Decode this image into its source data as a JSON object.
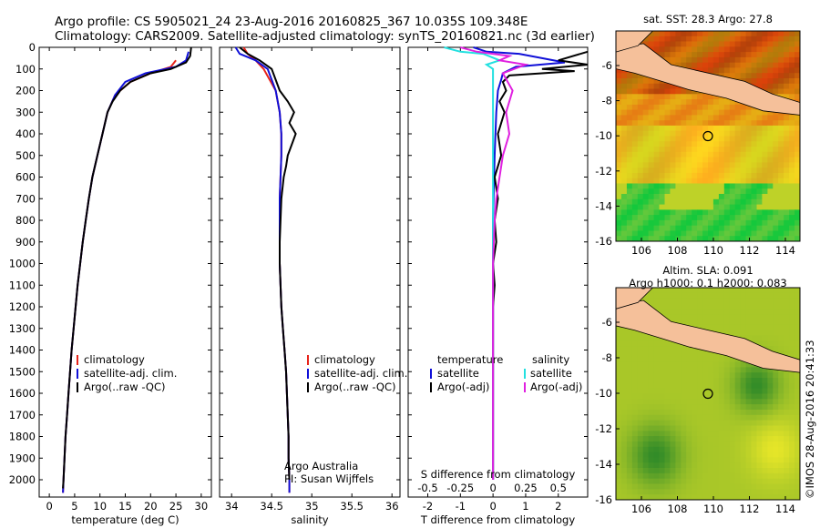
{
  "header": {
    "line1": "Argo profile: CS 5905021_24 23-Aug-2016 20160825_367 10.035S 109.348E",
    "line2": "Climatology: CARS2009. Satellite-adjusted climatology: synTS_20160821.nc (3d earlier)"
  },
  "depth_ticks": [
    0,
    100,
    200,
    300,
    400,
    500,
    600,
    700,
    800,
    900,
    1000,
    1100,
    1200,
    1300,
    1400,
    1500,
    1600,
    1700,
    1800,
    1900,
    2000
  ],
  "colors": {
    "climatology": "#e8241b",
    "satellite": "#1010d8",
    "argo": "#000000",
    "sal_sat": "#22e0e0",
    "sal_argo": "#e020e0"
  },
  "chart_data": [
    {
      "type": "line",
      "xlabel": "temperature (deg C)",
      "ylabel": "",
      "xticks": [
        0,
        5,
        10,
        15,
        20,
        25,
        30
      ],
      "xlim": [
        -2,
        32
      ],
      "ylim": [
        2080,
        0
      ],
      "legend": [
        "climatology",
        "satellite-adj. clim.",
        "Argo(..raw -QC)"
      ],
      "series": [
        {
          "name": "climatology",
          "points": [
            [
              25,
              60
            ],
            [
              24,
              90
            ],
            [
              20,
              120
            ],
            [
              16,
              160
            ],
            [
              13,
              220
            ],
            [
              11.5,
              300
            ],
            [
              10.5,
              400
            ],
            [
              9.5,
              500
            ],
            [
              8.5,
              600
            ],
            [
              7.8,
              700
            ],
            [
              7.2,
              800
            ],
            [
              6.6,
              900
            ],
            [
              6.1,
              1000
            ],
            [
              5.6,
              1100
            ],
            [
              5.2,
              1200
            ],
            [
              4.8,
              1300
            ],
            [
              4.4,
              1400
            ],
            [
              4.1,
              1500
            ],
            [
              3.8,
              1600
            ],
            [
              3.5,
              1700
            ],
            [
              3.2,
              1800
            ],
            [
              3.0,
              1900
            ],
            [
              2.8,
              2000
            ],
            [
              2.7,
              2060
            ]
          ]
        },
        {
          "name": "satellite-adj. clim.",
          "points": [
            [
              27.5,
              20
            ],
            [
              27,
              60
            ],
            [
              25,
              90
            ],
            [
              19,
              120
            ],
            [
              15,
              160
            ],
            [
              13,
              220
            ],
            [
              11.5,
              300
            ],
            [
              10.5,
              400
            ],
            [
              9.5,
              500
            ],
            [
              8.5,
              600
            ],
            [
              7.8,
              700
            ],
            [
              7.2,
              800
            ],
            [
              6.6,
              900
            ],
            [
              6.1,
              1000
            ],
            [
              5.6,
              1100
            ],
            [
              5.2,
              1200
            ],
            [
              4.8,
              1300
            ],
            [
              4.4,
              1400
            ],
            [
              4.1,
              1500
            ],
            [
              3.8,
              1600
            ],
            [
              3.5,
              1700
            ],
            [
              3.2,
              1800
            ],
            [
              3.0,
              1900
            ],
            [
              2.8,
              2000
            ],
            [
              2.7,
              2060
            ]
          ]
        },
        {
          "name": "Argo(..raw -QC)",
          "points": [
            [
              28,
              0
            ],
            [
              27.8,
              40
            ],
            [
              27,
              70
            ],
            [
              24,
              100
            ],
            [
              20,
              120
            ],
            [
              16,
              160
            ],
            [
              14,
              200
            ],
            [
              12.5,
              250
            ],
            [
              11.5,
              300
            ],
            [
              10.5,
              400
            ],
            [
              9.5,
              500
            ],
            [
              8.5,
              600
            ],
            [
              7.8,
              700
            ],
            [
              7.2,
              800
            ],
            [
              6.6,
              900
            ],
            [
              6.1,
              1000
            ],
            [
              5.6,
              1100
            ],
            [
              5.2,
              1200
            ],
            [
              4.8,
              1300
            ],
            [
              4.4,
              1400
            ],
            [
              4.1,
              1500
            ],
            [
              3.8,
              1600
            ],
            [
              3.5,
              1700
            ],
            [
              3.2,
              1800
            ],
            [
              3.0,
              1900
            ],
            [
              2.8,
              2000
            ],
            [
              2.7,
              2040
            ]
          ]
        }
      ]
    },
    {
      "type": "line",
      "xlabel": "salinity",
      "ylabel": "",
      "xticks": [
        34,
        34.5,
        35,
        35.5,
        36
      ],
      "xlim": [
        33.85,
        36.1
      ],
      "ylim": [
        2080,
        0
      ],
      "legend": [
        "climatology",
        "satellite-adj. clim.",
        "Argo(..raw -QC)"
      ],
      "annotation": [
        "Argo Australia",
        "PI: Susan Wijffels"
      ],
      "series": [
        {
          "name": "climatology",
          "points": [
            [
              34.15,
              0
            ],
            [
              34.2,
              30
            ],
            [
              34.3,
              60
            ],
            [
              34.4,
              100
            ],
            [
              34.55,
              200
            ],
            [
              34.6,
              300
            ],
            [
              34.62,
              400
            ],
            [
              34.62,
              500
            ],
            [
              34.61,
              600
            ],
            [
              34.6,
              700
            ],
            [
              34.6,
              800
            ],
            [
              34.6,
              900
            ],
            [
              34.6,
              1000
            ],
            [
              34.61,
              1100
            ],
            [
              34.62,
              1200
            ],
            [
              34.64,
              1300
            ],
            [
              34.66,
              1400
            ],
            [
              34.68,
              1500
            ],
            [
              34.69,
              1600
            ],
            [
              34.7,
              1700
            ],
            [
              34.71,
              1800
            ],
            [
              34.71,
              1900
            ],
            [
              34.72,
              2000
            ],
            [
              34.72,
              2060
            ]
          ]
        },
        {
          "name": "satellite-adj. clim.",
          "points": [
            [
              34.05,
              0
            ],
            [
              34.1,
              30
            ],
            [
              34.3,
              60
            ],
            [
              34.45,
              100
            ],
            [
              34.55,
              200
            ],
            [
              34.6,
              300
            ],
            [
              34.62,
              400
            ],
            [
              34.62,
              500
            ],
            [
              34.61,
              600
            ],
            [
              34.6,
              700
            ],
            [
              34.6,
              800
            ],
            [
              34.6,
              900
            ],
            [
              34.6,
              1000
            ],
            [
              34.61,
              1100
            ],
            [
              34.62,
              1200
            ],
            [
              34.64,
              1300
            ],
            [
              34.66,
              1400
            ],
            [
              34.68,
              1500
            ],
            [
              34.69,
              1600
            ],
            [
              34.7,
              1700
            ],
            [
              34.71,
              1800
            ],
            [
              34.71,
              1900
            ],
            [
              34.72,
              2000
            ],
            [
              34.72,
              2060
            ]
          ]
        },
        {
          "name": "Argo(..raw -QC)",
          "points": [
            [
              34.1,
              0
            ],
            [
              34.2,
              30
            ],
            [
              34.35,
              60
            ],
            [
              34.5,
              100
            ],
            [
              34.55,
              150
            ],
            [
              34.6,
              200
            ],
            [
              34.7,
              250
            ],
            [
              34.78,
              300
            ],
            [
              34.72,
              350
            ],
            [
              34.8,
              400
            ],
            [
              34.75,
              450
            ],
            [
              34.7,
              500
            ],
            [
              34.68,
              550
            ],
            [
              34.65,
              600
            ],
            [
              34.62,
              700
            ],
            [
              34.61,
              800
            ],
            [
              34.6,
              900
            ],
            [
              34.6,
              1000
            ],
            [
              34.61,
              1100
            ],
            [
              34.62,
              1200
            ],
            [
              34.64,
              1300
            ],
            [
              34.66,
              1400
            ],
            [
              34.68,
              1500
            ],
            [
              34.69,
              1600
            ],
            [
              34.7,
              1700
            ],
            [
              34.71,
              1800
            ],
            [
              34.71,
              1900
            ],
            [
              34.72,
              2000
            ]
          ]
        }
      ]
    },
    {
      "type": "line",
      "xlabel": "T difference from climatology",
      "xlabel_top": "S difference from climatology",
      "xticks": [
        -2,
        -1,
        0,
        1,
        2
      ],
      "xticks_top": [
        "-0.5",
        "-0.25",
        "0",
        "0.25",
        "0.5"
      ],
      "xlim": [
        -2.6,
        2.9
      ],
      "ylim": [
        2080,
        0
      ],
      "legend_left": [
        "temperature",
        "satellite",
        "Argo(-adj)"
      ],
      "legend_right": [
        "salinity",
        "satellite",
        "Argo(-adj)"
      ],
      "series": [
        {
          "name": "temperature satellite",
          "points": [
            [
              -0.6,
              0
            ],
            [
              -0.2,
              20
            ],
            [
              0.8,
              30
            ],
            [
              1.5,
              50
            ],
            [
              2.2,
              70
            ],
            [
              0.7,
              90
            ],
            [
              0.3,
              120
            ],
            [
              0.25,
              150
            ],
            [
              0.15,
              200
            ],
            [
              0.1,
              300
            ],
            [
              0.05,
              500
            ],
            [
              0,
              800
            ],
            [
              0,
              1500
            ],
            [
              0,
              2000
            ]
          ]
        },
        {
          "name": "temperature Argo(-adj)",
          "points": [
            [
              2.9,
              20
            ],
            [
              2.0,
              60
            ],
            [
              2.9,
              80
            ],
            [
              1.5,
              100
            ],
            [
              2.5,
              110
            ],
            [
              0.5,
              130
            ],
            [
              0.3,
              160
            ],
            [
              0.4,
              200
            ],
            [
              0.2,
              250
            ],
            [
              0.35,
              300
            ],
            [
              0.15,
              400
            ],
            [
              0.25,
              500
            ],
            [
              0.05,
              600
            ],
            [
              0.15,
              700
            ],
            [
              0.05,
              800
            ],
            [
              0.1,
              900
            ],
            [
              0,
              1000
            ],
            [
              0.05,
              1100
            ],
            [
              0,
              1200
            ],
            [
              0,
              1500
            ],
            [
              0,
              2000
            ]
          ]
        },
        {
          "name": "salinity satellite",
          "points": [
            [
              -1.5,
              0
            ],
            [
              -1,
              20
            ],
            [
              -0.3,
              30
            ],
            [
              0.2,
              60
            ],
            [
              -0.2,
              80
            ],
            [
              0,
              100
            ],
            [
              0,
              200
            ],
            [
              0,
              400
            ],
            [
              0,
              800
            ],
            [
              0,
              1500
            ],
            [
              0,
              2000
            ]
          ]
        },
        {
          "name": "salinity Argo(-adj)",
          "points": [
            [
              -1.0,
              0
            ],
            [
              -0.5,
              20
            ],
            [
              0.5,
              40
            ],
            [
              0.2,
              60
            ],
            [
              1.0,
              80
            ],
            [
              0.3,
              120
            ],
            [
              0.6,
              200
            ],
            [
              0.4,
              300
            ],
            [
              0.5,
              400
            ],
            [
              0.3,
              500
            ],
            [
              0.2,
              600
            ],
            [
              0.1,
              700
            ],
            [
              0.05,
              800
            ],
            [
              0,
              1000
            ],
            [
              0,
              1500
            ],
            [
              0,
              2000
            ]
          ]
        }
      ]
    }
  ],
  "maps": [
    {
      "title": "sat. SST: 28.3 Argo: 27.8",
      "title2": "",
      "xticks": [
        "106",
        "108",
        "110",
        "112",
        "114"
      ],
      "yticks": [
        "-6",
        "-8",
        "-10",
        "-12",
        "-14",
        "-16"
      ],
      "colormap": "sst"
    },
    {
      "title": "Altim. SLA: 0.091",
      "title2": "Argo h1000: 0.1 h2000: 0.083",
      "xticks": [
        "106",
        "108",
        "110",
        "112",
        "114"
      ],
      "yticks": [
        "-6",
        "-8",
        "-10",
        "-12",
        "-14",
        "-16"
      ],
      "colormap": "sla"
    }
  ],
  "credit": "©IMOS 28-Aug-2016 20:41:33"
}
